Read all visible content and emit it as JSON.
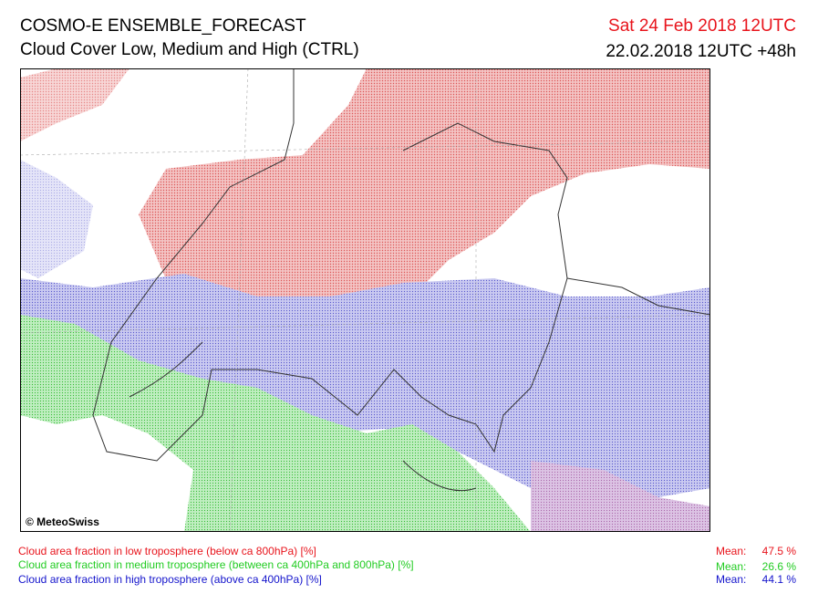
{
  "header": {
    "title": "COSMO-E ENSEMBLE_FORECAST",
    "subtitle": "Cloud Cover Low, Medium and High (CTRL)",
    "valid_time": "Sat 24 Feb 2018 12UTC",
    "run_time": "22.02.2018 12UTC +48h"
  },
  "map": {
    "credit": "© MeteoSwiss"
  },
  "legend": [
    {
      "label": "Cloud area fraction in low troposphere (below ca 800hPa) [%]",
      "mean_label": "Mean:",
      "mean": "47.5 %"
    },
    {
      "label": "Cloud area fraction in medium troposphere (between ca 400hPa and 800hPa) [%]",
      "mean_label": "Mean:",
      "mean": "26.6 %"
    },
    {
      "label": "Cloud area fraction in high troposphere (above ca 400hPa) [%]",
      "mean_label": "Mean:",
      "mean": "44.1 %"
    }
  ]
}
